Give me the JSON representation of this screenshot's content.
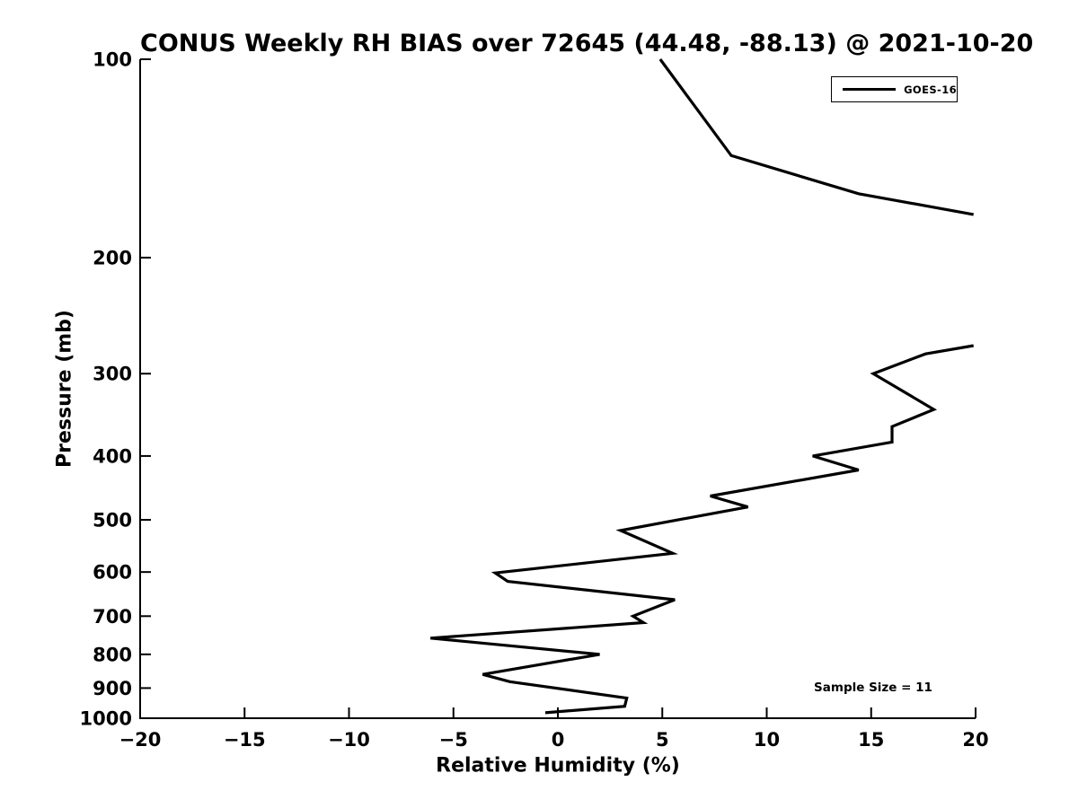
{
  "chart_data": {
    "type": "line",
    "title": "CONUS Weekly RH BIAS over 72645 (44.48, -88.13) @ 2021-10-20",
    "xlabel": "Relative Humidity (%)",
    "ylabel": "Pressure (mb)",
    "xlim": [
      -20,
      20
    ],
    "ylim": [
      100,
      1000
    ],
    "yscale": "log",
    "y_axis_inverted": true,
    "grid": false,
    "x_ticks": [
      -20,
      -15,
      -10,
      -5,
      0,
      5,
      10,
      15,
      20
    ],
    "y_ticks": [
      100,
      200,
      300,
      400,
      500,
      600,
      700,
      800,
      900,
      1000
    ],
    "legend": {
      "label": "GOES-16",
      "position": "upper right"
    },
    "annotation": "Sample Size = 11",
    "series": [
      {
        "name": "GOES-16",
        "color": "#000000",
        "units": "[relative_humidity_bias_percent, pressure_mb]",
        "segments": [
          {
            "points": [
              [
                4.9,
                100
              ],
              [
                8.3,
                140
              ],
              [
                14.4,
                160
              ],
              [
                19.9,
                172
              ]
            ]
          },
          {
            "points": [
              [
                19.9,
                272
              ],
              [
                17.6,
                280
              ],
              [
                15.1,
                300
              ],
              [
                18.0,
                340
              ],
              [
                16.0,
                361
              ],
              [
                16.0,
                381
              ],
              [
                12.2,
                400
              ],
              [
                14.4,
                420
              ],
              [
                7.3,
                460
              ],
              [
                9.1,
                478
              ],
              [
                3.0,
                519
              ],
              [
                5.5,
                562
              ],
              [
                -3.0,
                602
              ],
              [
                -2.4,
                620
              ],
              [
                5.6,
                661
              ],
              [
                3.6,
                700
              ],
              [
                4.1,
                716
              ],
              [
                -6.1,
                756
              ],
              [
                2.0,
                800
              ],
              [
                -3.6,
                858
              ],
              [
                -2.3,
                880
              ],
              [
                3.3,
                932
              ],
              [
                3.2,
                959
              ],
              [
                -0.6,
                981
              ]
            ]
          }
        ]
      }
    ]
  }
}
